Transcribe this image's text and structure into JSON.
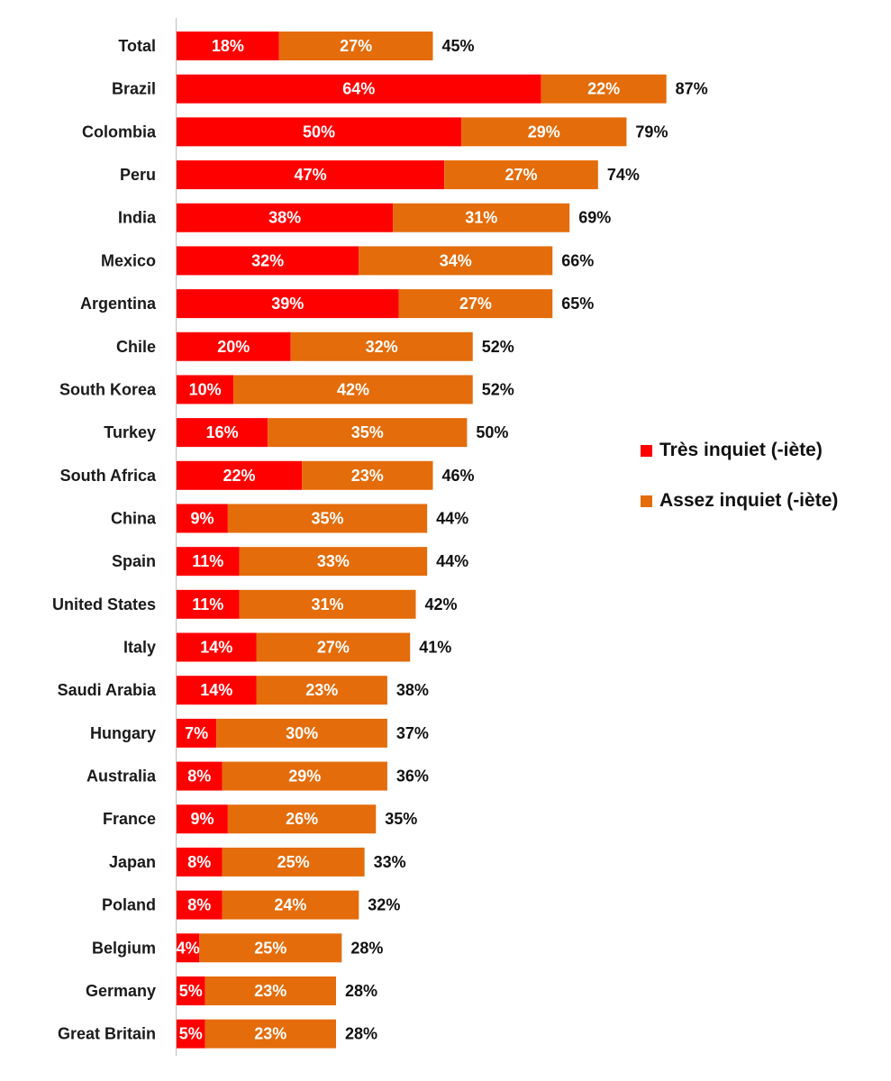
{
  "chart_data": {
    "type": "bar",
    "orientation": "horizontal",
    "stacked": true,
    "categories": [
      "Total",
      "Brazil",
      "Colombia",
      "Peru",
      "India",
      "Mexico",
      "Argentina",
      "Chile",
      "South Korea",
      "Turkey",
      "South Africa",
      "China",
      "Spain",
      "United States",
      "Italy",
      "Saudi Arabia",
      "Hungary",
      "Australia",
      "France",
      "Japan",
      "Poland",
      "Belgium",
      "Germany",
      "Great Britain"
    ],
    "series": [
      {
        "name": "Très inquiet (-iète)",
        "color": "#ff0000",
        "values": [
          18,
          64,
          50,
          47,
          38,
          32,
          39,
          20,
          10,
          16,
          22,
          9,
          11,
          11,
          14,
          14,
          7,
          8,
          9,
          8,
          8,
          4,
          5,
          5
        ],
        "labels": [
          "18%",
          "64%",
          "50%",
          "47%",
          "38%",
          "32%",
          "39%",
          "20%",
          "10%",
          "16%",
          "22%",
          "9%",
          "11%",
          "11%",
          "14%",
          "14%",
          "7%",
          "8%",
          "9%",
          "8%",
          "8%",
          "4%",
          "5%",
          "5%"
        ]
      },
      {
        "name": "Assez inquiet (-iète)",
        "color": "#e46c0a",
        "values": [
          27,
          22,
          29,
          27,
          31,
          34,
          27,
          32,
          42,
          35,
          23,
          35,
          33,
          31,
          27,
          23,
          30,
          29,
          26,
          25,
          24,
          25,
          23,
          23
        ],
        "labels": [
          "27%",
          "22%",
          "29%",
          "27%",
          "31%",
          "34%",
          "27%",
          "32%",
          "42%",
          "35%",
          "23%",
          "35%",
          "33%",
          "31%",
          "27%",
          "23%",
          "30%",
          "29%",
          "26%",
          "25%",
          "24%",
          "25%",
          "23%",
          "23%"
        ]
      }
    ],
    "totals": [
      45,
      87,
      79,
      74,
      69,
      66,
      65,
      52,
      52,
      50,
      46,
      44,
      44,
      42,
      41,
      38,
      37,
      36,
      35,
      33,
      32,
      28,
      28,
      28
    ],
    "total_labels": [
      "45%",
      "87%",
      "79%",
      "74%",
      "69%",
      "66%",
      "65%",
      "52%",
      "52%",
      "50%",
      "46%",
      "44%",
      "44%",
      "42%",
      "41%",
      "38%",
      "37%",
      "36%",
      "35%",
      "33%",
      "32%",
      "28%",
      "28%",
      "28%"
    ],
    "xlim": [
      0,
      100
    ],
    "grid": false,
    "legend_position": "right"
  }
}
